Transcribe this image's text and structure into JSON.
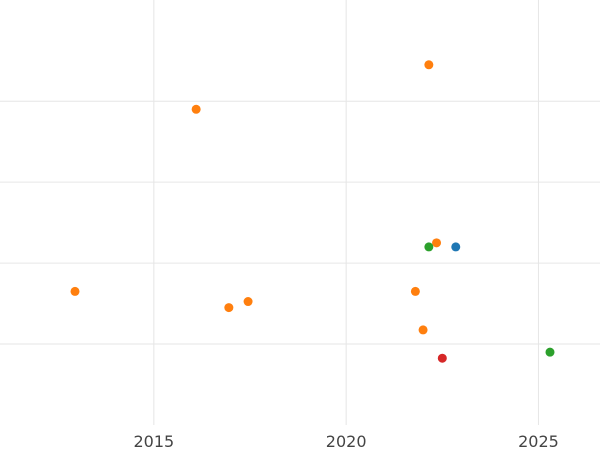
{
  "chart_data": {
    "type": "scatter",
    "title": "",
    "xlabel": "",
    "ylabel": "",
    "xlim": [
      2011,
      2026.6
    ],
    "ylim": [
      0,
      10.5
    ],
    "x_ticks": [
      2015,
      2020,
      2025
    ],
    "x_tick_labels": [
      "2015",
      "2020",
      "2025"
    ],
    "y_gridlines": [
      2,
      4,
      6,
      8
    ],
    "grid": true,
    "legend": "none",
    "series": [
      {
        "color": "#1f77b4",
        "points": [
          {
            "x": 2022.85,
            "y": 4.4
          }
        ]
      },
      {
        "color": "#ff7f0e",
        "points": [
          {
            "x": 2012.95,
            "y": 3.3
          },
          {
            "x": 2016.1,
            "y": 7.8
          },
          {
            "x": 2016.95,
            "y": 2.9
          },
          {
            "x": 2017.45,
            "y": 3.05
          },
          {
            "x": 2021.8,
            "y": 3.3
          },
          {
            "x": 2022.0,
            "y": 2.35
          },
          {
            "x": 2022.15,
            "y": 8.9
          },
          {
            "x": 2022.35,
            "y": 4.5
          }
        ]
      },
      {
        "color": "#2ca02c",
        "points": [
          {
            "x": 2022.15,
            "y": 4.4
          },
          {
            "x": 2025.3,
            "y": 1.8
          }
        ]
      },
      {
        "color": "#d62728",
        "points": [
          {
            "x": 2022.5,
            "y": 1.65
          }
        ]
      }
    ]
  }
}
